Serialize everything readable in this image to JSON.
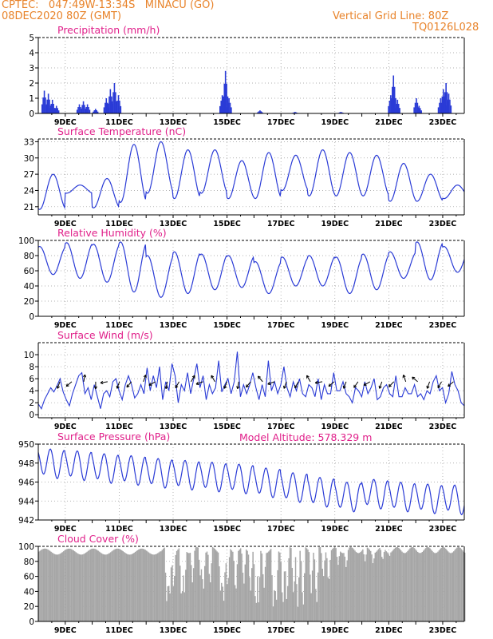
{
  "header": {
    "line1": "CPTEC:   047:49W-13:34S   MINACU (GO)",
    "line2": "08DEC2020 80Z (GMT)",
    "right1": "Vertical Grid Line: 80Z",
    "right2": "TQ0126L028"
  },
  "colors": {
    "header": "#e8832a",
    "title": "#e0208a",
    "line": "#2a3bd6",
    "cloud": "#a6a6a6"
  },
  "x_tick_labels": [
    "9DEC",
    "11DEC",
    "13DEC",
    "15DEC",
    "17DEC",
    "19DEC",
    "21DEC",
    "23DEC"
  ],
  "chart_data": [
    {
      "type": "bar",
      "title": "Precipitation (mm/h)",
      "x_unit": "days since 08DEC2020 00Z",
      "xlim": [
        0,
        15.8
      ],
      "ylim": [
        0,
        5
      ],
      "yticks": [
        0,
        1,
        2,
        3,
        4,
        5
      ],
      "grid": true,
      "peaks": [
        [
          0.2,
          1.5
        ],
        [
          0.35,
          1.3
        ],
        [
          0.5,
          0.9
        ],
        [
          0.65,
          0.5
        ],
        [
          1.5,
          0.6
        ],
        [
          1.65,
          0.8
        ],
        [
          1.8,
          0.6
        ],
        [
          2.1,
          0.3
        ],
        [
          2.5,
          1.0
        ],
        [
          2.65,
          1.6
        ],
        [
          2.8,
          2.0
        ],
        [
          2.95,
          1.2
        ],
        [
          6.8,
          1.2
        ],
        [
          6.92,
          2.8
        ],
        [
          7.05,
          1.0
        ],
        [
          8.2,
          0.2
        ],
        [
          9.5,
          0.1
        ],
        [
          11.2,
          0.1
        ],
        [
          13.05,
          1.2
        ],
        [
          13.15,
          2.5
        ],
        [
          13.3,
          0.9
        ],
        [
          14.0,
          1.0
        ],
        [
          14.1,
          0.5
        ],
        [
          14.9,
          1.0
        ],
        [
          15.0,
          1.6
        ],
        [
          15.1,
          2.0
        ],
        [
          15.2,
          1.3
        ]
      ]
    },
    {
      "type": "line",
      "title": "Surface Temperature (nC)",
      "x_unit": "days since 08DEC2020 00Z",
      "xlim": [
        0,
        15.8
      ],
      "ylim": [
        19.5,
        33.5
      ],
      "yticks": [
        21,
        24,
        27,
        30,
        33
      ],
      "grid": true,
      "mins": [
        20.5,
        23.5,
        20.8,
        21.8,
        23.5,
        22.5,
        23.5,
        22.5,
        22.5,
        24.0,
        23.0,
        23.0,
        23.0,
        22.0,
        22.0,
        22.5
      ],
      "maxs": [
        27.0,
        25.0,
        26.2,
        32.5,
        33.0,
        31.5,
        31.5,
        29.5,
        31.0,
        30.5,
        31.5,
        31.0,
        30.5,
        29.0,
        27.0,
        25.0
      ]
    },
    {
      "type": "line",
      "title": "Relative Humidity (%)",
      "x_unit": "days since 08DEC2020 00Z",
      "xlim": [
        0,
        15.8
      ],
      "ylim": [
        0,
        100
      ],
      "yticks": [
        0,
        20,
        40,
        60,
        80,
        100
      ],
      "grid": true,
      "maxs": [
        92,
        97,
        95,
        98,
        80,
        85,
        82,
        80,
        72,
        78,
        80,
        78,
        82,
        85,
        98,
        92
      ],
      "mins": [
        55,
        50,
        45,
        32,
        25,
        30,
        35,
        38,
        30,
        40,
        40,
        30,
        35,
        50,
        48,
        58
      ]
    },
    {
      "type": "line",
      "title": "Surface Wind (m/s)",
      "x_unit": "days since 08DEC2020 00Z",
      "xlim": [
        0,
        15.8
      ],
      "ylim": [
        -0.5,
        12
      ],
      "yticks": [
        0,
        2,
        4,
        6,
        8,
        10
      ],
      "grid": true,
      "speeds": [
        1.8,
        1.0,
        2.5,
        3.5,
        4.5,
        3.8,
        4.8,
        6.0,
        3.8,
        2.5,
        1.5,
        3.5,
        5.0,
        6.5,
        7.0,
        3.5,
        4.5,
        2.5,
        5.0,
        3.0,
        1.0,
        3.5,
        4.0,
        3.0,
        5.5,
        6.0,
        4.0,
        2.5,
        5.0,
        6.5,
        5.0,
        2.8,
        3.5,
        5.0,
        3.5,
        7.8,
        4.0,
        6.5,
        4.5,
        8.0,
        2.5,
        5.5,
        4.0,
        8.5,
        6.5,
        2.0,
        5.0,
        4.0,
        7.0,
        3.5,
        6.0,
        8.5,
        4.5,
        6.5,
        2.5,
        5.0,
        3.5,
        4.5,
        9.0,
        3.8,
        5.0,
        6.0,
        3.5,
        5.5,
        10.5,
        3.0,
        5.0,
        3.5,
        5.0,
        7.0,
        4.5,
        2.5,
        5.0,
        3.0,
        9.0,
        4.0,
        5.5,
        3.5,
        5.0,
        8.0,
        4.5,
        3.0,
        5.5,
        4.0,
        6.0,
        3.5,
        3.0,
        5.0,
        4.5,
        3.0,
        6.0,
        2.5,
        5.0,
        3.5,
        3.5,
        7.0,
        4.0,
        4.0,
        5.5,
        3.5,
        3.0,
        2.0,
        4.5,
        4.0,
        3.0,
        5.5,
        3.5,
        4.5,
        6.0,
        2.5,
        3.0,
        4.5,
        5.0,
        3.5,
        3.0,
        6.5,
        3.0,
        3.0,
        4.5,
        3.5,
        3.5,
        5.0,
        3.0,
        3.5,
        2.5,
        4.0,
        3.5,
        5.5,
        6.5,
        4.0,
        4.5,
        2.0,
        3.5,
        7.2,
        5.0,
        4.0,
        2.0,
        1.5
      ],
      "wind_dirs_deg": [
        200,
        230,
        10,
        180,
        260,
        200,
        220,
        20,
        240,
        190,
        210,
        30,
        250,
        330,
        200,
        190,
        220,
        320,
        250,
        200,
        210,
        330,
        260,
        230,
        200,
        215,
        240,
        200,
        225,
        340,
        310,
        200,
        210,
        230
      ]
    },
    {
      "type": "line",
      "title": "Surface Pressure (hPa)",
      "annotation": "Model Altitude: 578.329 m",
      "x_unit": "days since 08DEC2020 00Z",
      "xlim": [
        0,
        15.8
      ],
      "ylim": [
        942,
        950
      ],
      "yticks": [
        942,
        944,
        946,
        948,
        950
      ],
      "grid": true,
      "mean_per_day": [
        948.0,
        947.8,
        947.5,
        947.3,
        947.0,
        946.8,
        946.6,
        946.4,
        946.0,
        945.5,
        945.0,
        944.5,
        944.8,
        944.5,
        944.3,
        944.2
      ],
      "semidiurnal_amplitude": 1.4
    },
    {
      "type": "area",
      "title": "Cloud Cover (%)",
      "x_unit": "days since 08DEC2020 00Z",
      "xlim": [
        0,
        15.8
      ],
      "ylim": [
        0,
        100
      ],
      "yticks": [
        0,
        20,
        40,
        60,
        80,
        100
      ],
      "grid": true,
      "dips": [
        [
          4.75,
          18
        ],
        [
          4.85,
          25
        ],
        [
          5.0,
          40
        ],
        [
          5.3,
          20
        ],
        [
          5.4,
          35
        ],
        [
          5.7,
          50
        ],
        [
          6.0,
          55
        ],
        [
          6.1,
          35
        ],
        [
          6.35,
          45
        ],
        [
          6.75,
          30
        ],
        [
          6.85,
          18
        ],
        [
          7.0,
          40
        ],
        [
          7.3,
          30
        ],
        [
          7.6,
          45
        ],
        [
          7.85,
          35
        ],
        [
          8.05,
          8
        ],
        [
          8.15,
          25
        ],
        [
          8.35,
          40
        ],
        [
          8.7,
          10
        ],
        [
          8.8,
          15
        ],
        [
          9.05,
          12
        ],
        [
          9.2,
          20
        ],
        [
          9.45,
          30
        ],
        [
          9.6,
          15
        ],
        [
          9.8,
          10
        ],
        [
          10.1,
          35
        ],
        [
          10.3,
          15
        ],
        [
          10.55,
          55
        ],
        [
          10.75,
          45
        ],
        [
          11.1,
          75
        ],
        [
          11.4,
          70
        ],
        [
          12.1,
          80
        ],
        [
          12.4,
          75
        ],
        [
          12.75,
          80
        ],
        [
          13.0,
          85
        ]
      ]
    }
  ]
}
